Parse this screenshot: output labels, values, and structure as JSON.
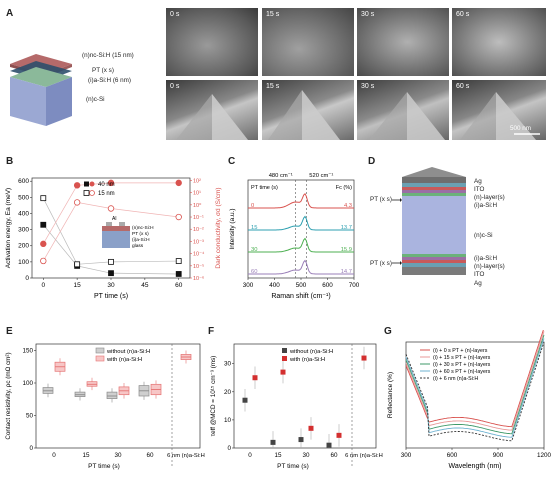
{
  "panels": {
    "A": "A",
    "B": "B",
    "C": "C",
    "D": "D",
    "E": "E",
    "F": "F",
    "G": "G"
  },
  "panelA": {
    "layers": [
      "(n)nc-Si:H (15 nm)",
      "PT (x s)",
      "(i)a-Si:H (6 nm)",
      "(n)c-Si"
    ],
    "sem_times_top": [
      "0 s",
      "15 s",
      "30 s",
      "60 s"
    ],
    "sem_times_bottom": [
      "0 s",
      "15 s",
      "30 s",
      "60 s"
    ],
    "scalebar": "500 nm"
  },
  "panelD": {
    "layers": [
      "Ag",
      "ITO",
      "(n)-layer(s)",
      "(i)a-Si:H",
      "(n)c-Si",
      "(i)a-Si:H",
      "(n)-layer(s)",
      "ITO",
      "Ag"
    ],
    "pt_top": "PT (x s)",
    "pt_bottom": "PT (x s)"
  },
  "chart_data": [
    {
      "id": "B",
      "type": "scatter",
      "xlabel": "PT time (s)",
      "ylabel_left": "Activation energy, Ea (meV)",
      "ylabel_right": "Dark conductivity, σd (S/cm)",
      "x_ticks": [
        "0",
        "15",
        "30",
        "45",
        "60"
      ],
      "y_left_ticks": [
        "0",
        "100",
        "200",
        "300",
        "400",
        "500",
        "600"
      ],
      "y_right_ticks": [
        "10⁻⁶",
        "10⁻⁵",
        "10⁻⁴",
        "10⁻³",
        "10⁻²",
        "10⁻¹",
        "10⁰",
        "10¹",
        "10²"
      ],
      "xlim": [
        -5,
        65
      ],
      "ylim_left": [
        0,
        620
      ],
      "ylim_right_log": [
        -6,
        2.2
      ],
      "legend": [
        "40 nm",
        "15 nm"
      ],
      "inset": [
        "Al",
        "(n)nc-Si:H",
        "PT (x s)",
        "(i)a-Si:H",
        "glass"
      ],
      "series": [
        {
          "name": "40 nm",
          "axis": "left",
          "style": "filled-square",
          "x": [
            0,
            15,
            30,
            60
          ],
          "y": [
            330,
            75,
            30,
            25
          ]
        },
        {
          "name": "15 nm",
          "axis": "left",
          "style": "open-square",
          "x": [
            0,
            15,
            30,
            60
          ],
          "y": [
            495,
            85,
            100,
            105
          ]
        },
        {
          "name": "40 nm",
          "axis": "right",
          "style": "filled-circle",
          "x": [
            0,
            15,
            30,
            60
          ],
          "y": [
            -3.2,
            1.6,
            1.8,
            1.8
          ]
        },
        {
          "name": "15 nm",
          "axis": "right",
          "style": "open-circle",
          "x": [
            0,
            15,
            30,
            60
          ],
          "y": [
            -4.6,
            0.2,
            -0.3,
            -1.0
          ]
        }
      ]
    },
    {
      "id": "C",
      "type": "line",
      "xlabel": "Raman shift (cm⁻¹)",
      "ylabel": "Intensity (a.u.)",
      "x_ticks": [
        "300",
        "400",
        "500",
        "600",
        "700"
      ],
      "xlim": [
        300,
        700
      ],
      "markers": [
        "480 cm⁻¹",
        "520 cm⁻¹"
      ],
      "marker_x": [
        480,
        520
      ],
      "col_header_left": "PT time (s)",
      "col_header_right": "Fc (%)",
      "series": [
        {
          "name": "0",
          "fc": "4.3",
          "color": "#d9534f"
        },
        {
          "name": "15",
          "fc": "13.7",
          "color": "#2c9fb0"
        },
        {
          "name": "30",
          "fc": "15.9",
          "color": "#4caf50"
        },
        {
          "name": "60",
          "fc": "14.7",
          "color": "#9a7fb8"
        }
      ]
    },
    {
      "id": "E",
      "type": "box",
      "xlabel": "PT time (s)",
      "ylabel": "Contact resistivity, ρc (mΩ cm²)",
      "x_ticks": [
        "0",
        "15",
        "30",
        "60"
      ],
      "extra_category": "6 nm (n)a-Si:H",
      "y_ticks": [
        "0",
        "50",
        "100",
        "150"
      ],
      "ylim": [
        0,
        160
      ],
      "legend": [
        "without (n)a-Si:H",
        "with (n)a-Si:H"
      ],
      "series": [
        {
          "name": "without (n)a-Si:H",
          "medians": [
            88,
            82,
            80,
            88
          ],
          "q1": [
            84,
            79,
            76,
            80
          ],
          "q3": [
            93,
            86,
            86,
            96
          ]
        },
        {
          "name": "with (n)a-Si:H",
          "medians": [
            125,
            98,
            88,
            90,
            140
          ],
          "q1": [
            118,
            95,
            82,
            82,
            136
          ],
          "q3": [
            132,
            102,
            94,
            98,
            144
          ]
        }
      ]
    },
    {
      "id": "F",
      "type": "scatter",
      "xlabel": "PT time (s)",
      "ylabel": "τeff @MCD = 10¹⁵ cm⁻³ (ms)",
      "x_ticks": [
        "0",
        "15",
        "30",
        "60"
      ],
      "extra_category": "6 nm (n)a-Si:H",
      "y_ticks": [
        "0",
        "10",
        "20",
        "30"
      ],
      "ylim": [
        0,
        37
      ],
      "legend": [
        "without (n)a-Si:H",
        "with (n)a-Si:H"
      ],
      "series": [
        {
          "name": "without (n)a-Si:H",
          "values": [
            17,
            2,
            3,
            1
          ]
        },
        {
          "name": "with (n)a-Si:H",
          "values": [
            25,
            27,
            7,
            4.5,
            32
          ]
        }
      ]
    },
    {
      "id": "G",
      "type": "line",
      "xlabel": "Wavelength (nm)",
      "ylabel": "Reflectance (%)",
      "x_ticks": [
        "300",
        "600",
        "900",
        "1200"
      ],
      "xlim": [
        300,
        1200
      ],
      "series": [
        {
          "name": "(i) +  0 s PT + (n)-layers",
          "color": "#d9534f"
        },
        {
          "name": "(i) + 15 s PT + (n)-layers",
          "color": "#e89a9a"
        },
        {
          "name": "(i) + 30 s PT + (n)-layers",
          "color": "#3f9a6a"
        },
        {
          "name": "(i) + 60 s PT + (n)-layers",
          "color": "#6fb3d2"
        },
        {
          "name": "(i) + 6 nm (n)a-Si:H",
          "color": "#333333"
        }
      ]
    }
  ]
}
